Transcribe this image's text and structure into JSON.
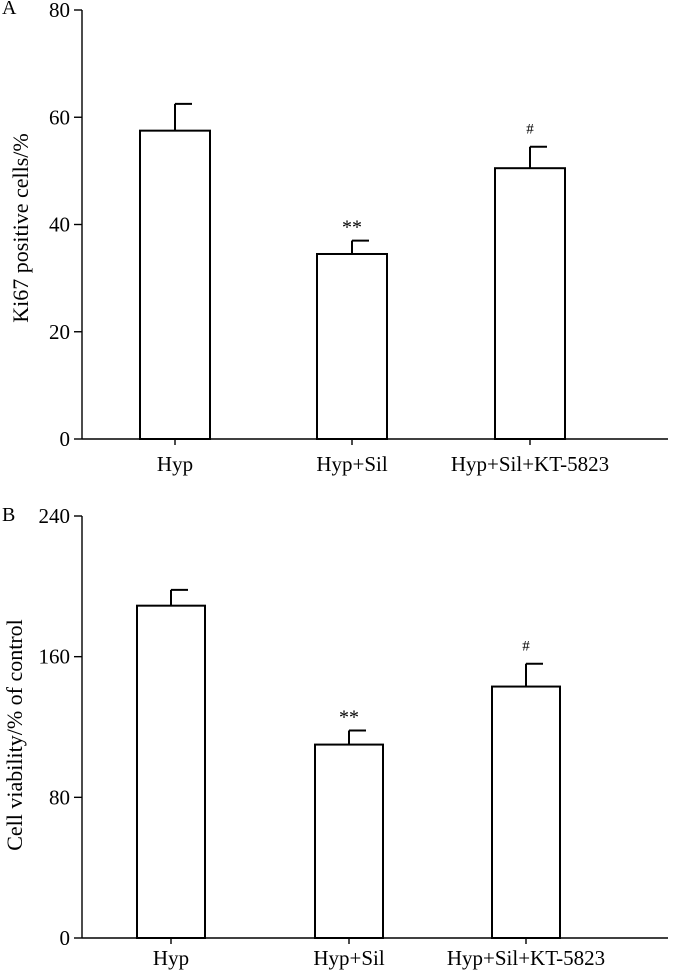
{
  "chart_data": [
    {
      "type": "bar",
      "panel_label": "A",
      "title": "",
      "xlabel": "",
      "ylabel": "Ki67 positive cells/%",
      "ylim": [
        0,
        80
      ],
      "yticks": [
        0,
        20,
        40,
        60,
        80
      ],
      "categories": [
        "Hyp",
        "Hyp+Sil",
        "Hyp+Sil+KT-5823"
      ],
      "values": [
        57.5,
        34.5,
        50.5
      ],
      "errors": [
        5,
        2.5,
        4
      ],
      "annotations": [
        "",
        "**",
        "#"
      ],
      "grid": false,
      "legend": "none"
    },
    {
      "type": "bar",
      "panel_label": "B",
      "title": "",
      "xlabel": "",
      "ylabel": "Cell viability/% of control",
      "ylim": [
        0,
        240
      ],
      "yticks": [
        0,
        80,
        160,
        240
      ],
      "categories": [
        "Hyp",
        "Hyp+Sil",
        "Hyp+Sil+KT-5823"
      ],
      "values": [
        189,
        110,
        143
      ],
      "errors": [
        9,
        8,
        13
      ],
      "annotations": [
        "",
        "**",
        "#"
      ],
      "grid": false,
      "legend": "none"
    }
  ]
}
